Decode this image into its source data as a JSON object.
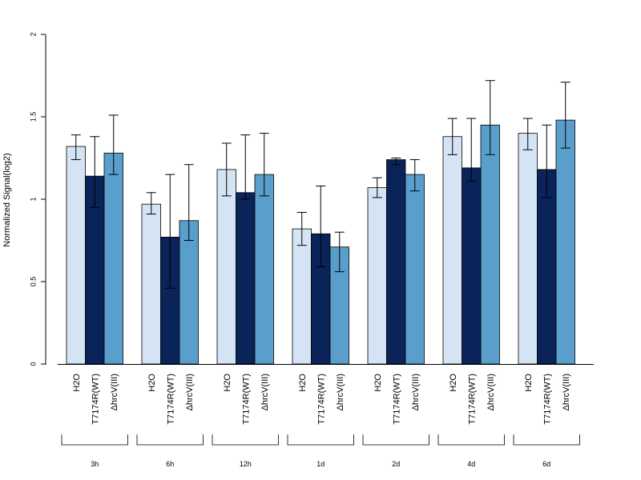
{
  "chart_data": {
    "type": "bar",
    "ylabel": "Normalized Signal(log2)",
    "xlabel": "",
    "ylim": [
      0,
      2
    ],
    "yticks": [
      "0",
      "0.5",
      "1",
      "1.5",
      "2"
    ],
    "ytick_values": [
      0,
      0.5,
      1,
      1.5,
      2
    ],
    "groups": [
      "3h",
      "6h",
      "12h",
      "1d",
      "2d",
      "4d",
      "6d"
    ],
    "series": [
      {
        "name": "H2O",
        "color": "#d5e4f4",
        "values": [
          1.32,
          0.97,
          1.18,
          0.82,
          1.07,
          1.38,
          1.4
        ],
        "err_low": [
          1.24,
          0.91,
          1.02,
          0.72,
          1.01,
          1.27,
          1.3
        ],
        "err_high": [
          1.39,
          1.04,
          1.34,
          0.92,
          1.13,
          1.49,
          1.49
        ]
      },
      {
        "name": "T7174R(WT)",
        "color": "#0a2358",
        "values": [
          1.14,
          0.77,
          1.04,
          0.79,
          1.24,
          1.19,
          1.18
        ],
        "err_low": [
          0.95,
          0.46,
          1.0,
          0.59,
          1.21,
          1.11,
          1.01
        ],
        "err_high": [
          1.38,
          1.15,
          1.39,
          1.08,
          1.25,
          1.49,
          1.45
        ]
      },
      {
        "name": "ΔhrcV(III)",
        "color": "#5a9ecb",
        "values": [
          1.28,
          0.87,
          1.15,
          0.71,
          1.15,
          1.45,
          1.48
        ],
        "err_low": [
          1.15,
          0.75,
          1.02,
          0.56,
          1.05,
          1.27,
          1.31
        ],
        "err_high": [
          1.51,
          1.21,
          1.4,
          0.8,
          1.24,
          1.72,
          1.71
        ]
      }
    ],
    "grid": false,
    "legend": "none"
  }
}
